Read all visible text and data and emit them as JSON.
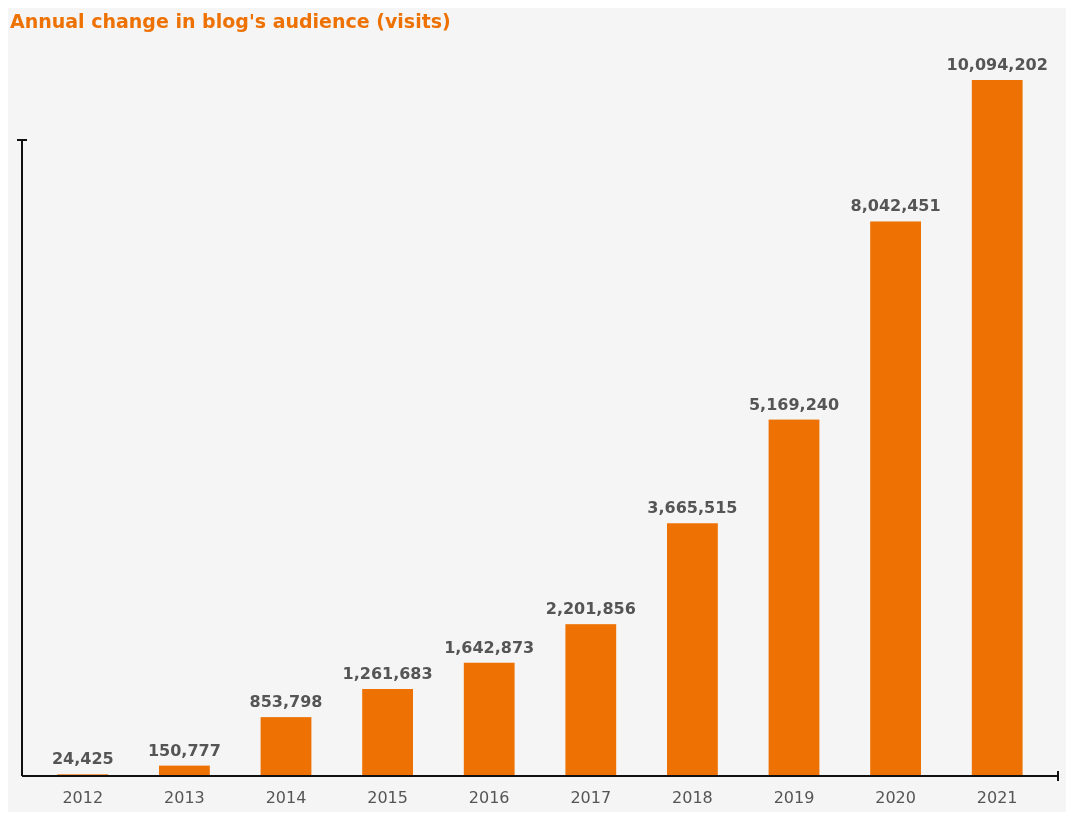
{
  "chart_data": {
    "type": "bar",
    "title": "Annual change in blog's audience (visits)",
    "categories": [
      "2012",
      "2013",
      "2014",
      "2015",
      "2016",
      "2017",
      "2018",
      "2019",
      "2020",
      "2021"
    ],
    "values": [
      24425,
      150777,
      853798,
      1261683,
      1642873,
      2201856,
      3665515,
      5169240,
      8042451,
      10094202
    ],
    "value_labels": [
      "24,425",
      "150,777",
      "853,798",
      "1,261,683",
      "1,642,873",
      "2,201,856",
      "3,665,515",
      "5,169,240",
      "8,042,451",
      "10,094,202"
    ],
    "color": "#ee7203",
    "tick_labels": "x"
  }
}
